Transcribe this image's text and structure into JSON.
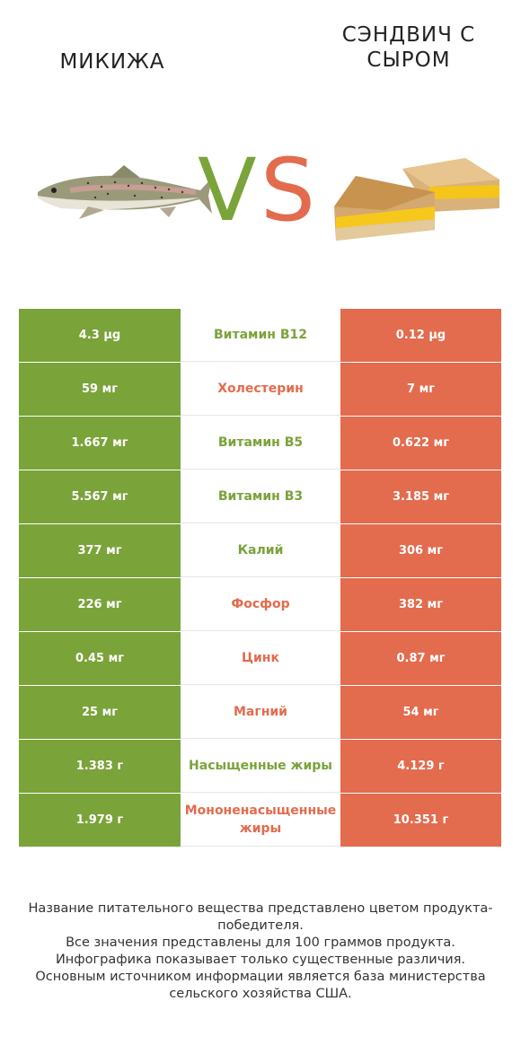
{
  "header": {
    "left_title": "Микижа",
    "right_title": "Сэндвич с сыром",
    "vs_v": "V",
    "vs_s": "S"
  },
  "colors": {
    "left": "#7aa33a",
    "right": "#e36b4e"
  },
  "icons": {
    "left": "trout-fish-image",
    "right": "grilled-cheese-sandwich-image"
  },
  "rows": [
    {
      "nutrient": "Витамин B12",
      "left": "4.3 µg",
      "right": "0.12 µg",
      "winner": "left"
    },
    {
      "nutrient": "Холестерин",
      "left": "59 мг",
      "right": "7 мг",
      "winner": "right"
    },
    {
      "nutrient": "Витамин B5",
      "left": "1.667 мг",
      "right": "0.622 мг",
      "winner": "left"
    },
    {
      "nutrient": "Витамин B3",
      "left": "5.567 мг",
      "right": "3.185 мг",
      "winner": "left"
    },
    {
      "nutrient": "Калий",
      "left": "377 мг",
      "right": "306 мг",
      "winner": "left"
    },
    {
      "nutrient": "Фосфор",
      "left": "226 мг",
      "right": "382 мг",
      "winner": "right"
    },
    {
      "nutrient": "Цинк",
      "left": "0.45 мг",
      "right": "0.87 мг",
      "winner": "right"
    },
    {
      "nutrient": "Магний",
      "left": "25 мг",
      "right": "54 мг",
      "winner": "right"
    },
    {
      "nutrient": "Насыщенные жиры",
      "left": "1.383 г",
      "right": "4.129 г",
      "winner": "left"
    },
    {
      "nutrient": "Мононенасыщенные жиры",
      "left": "1.979 г",
      "right": "10.351 г",
      "winner": "right"
    }
  ],
  "footer": [
    "Название питательного вещества представлено цветом продукта-победителя.",
    "Все значения представлены для 100 граммов продукта.",
    "Инфографика показывает только существенные различия.",
    "Основным источником информации является база министерства сельского хозяйства США."
  ]
}
